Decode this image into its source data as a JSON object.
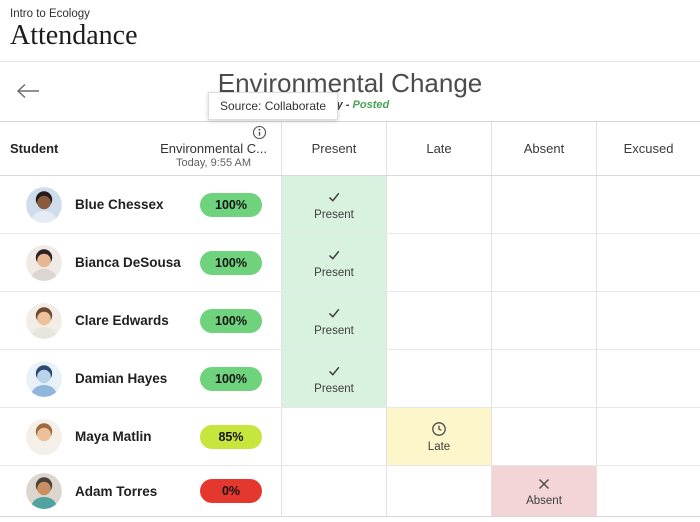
{
  "app": {
    "course": "Intro to Ecology",
    "title": "Attendance"
  },
  "meeting": {
    "title": "Environmental Change",
    "date_label": "Today -",
    "status_label": "Posted",
    "tooltip": "Source: Collaborate"
  },
  "table": {
    "student_header": "Student",
    "session": {
      "name": "Environmental C...",
      "time": "Today, 9:55 AM"
    },
    "status_columns": [
      "Present",
      "Late",
      "Absent",
      "Excused"
    ],
    "rows": [
      {
        "name": "Blue Chessex",
        "score": "100%",
        "score_type": "green",
        "status": "Present",
        "avatar": {
          "bg": "#cfdcec",
          "hair": "#221c1e",
          "skin": "#8a5a3c",
          "shirt": "#e6ecf4"
        }
      },
      {
        "name": "Bianca DeSousa",
        "score": "100%",
        "score_type": "green",
        "status": "Present",
        "avatar": {
          "bg": "#efeae5",
          "hair": "#2a2125",
          "skin": "#e8b68f",
          "shirt": "#ddd6d0"
        }
      },
      {
        "name": "Clare Edwards",
        "score": "100%",
        "score_type": "green",
        "status": "Present",
        "avatar": {
          "bg": "#f2ede6",
          "hair": "#6c4a33",
          "skin": "#ecc19c",
          "shirt": "#e8e4de"
        }
      },
      {
        "name": "Damian Hayes",
        "score": "100%",
        "score_type": "green",
        "status": "Present",
        "avatar": {
          "bg": "#e9f1f8",
          "hair": "#2c4a70",
          "skin": "#b9d4ea",
          "shirt": "#8fb6dc"
        }
      },
      {
        "name": "Maya Matlin",
        "score": "85%",
        "score_type": "lime",
        "status": "Late",
        "avatar": {
          "bg": "#f5efe7",
          "hair": "#9a6b43",
          "skin": "#eec09a",
          "shirt": "#f3f0ec"
        }
      },
      {
        "name": "Adam Torres",
        "score": "0%",
        "score_type": "red",
        "status": "Absent",
        "avatar": {
          "bg": "#dcd6cd",
          "hair": "#4a4039",
          "skin": "#c98e62",
          "shirt": "#4fa3a0"
        }
      }
    ]
  },
  "colors": {
    "present_bg": "#d8f2df",
    "late_bg": "#fdf6ca",
    "absent_bg": "#f3d4d7",
    "pill_green": "#6fd27c",
    "pill_lime": "#c6e53d",
    "pill_red": "#e4382e",
    "posted_green": "#4aa155"
  }
}
